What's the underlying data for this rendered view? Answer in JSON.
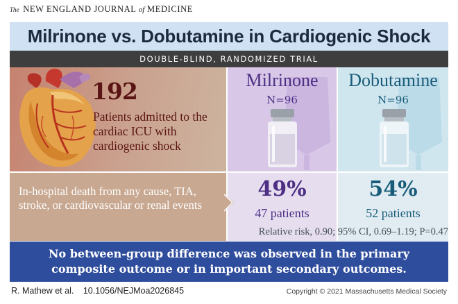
{
  "journal": {
    "the": "The",
    "name_part1": "NEW ENGLAND JOURNAL",
    "of": "of",
    "name_part2": "MEDICINE"
  },
  "title": "Milrinone vs. Dobutamine in Cardiogenic Shock",
  "design": "DOUBLE-BLIND, RANDOMIZED TRIAL",
  "patients": {
    "count": "192",
    "description": "Patients admitted to the cardiac ICU with cardiogenic shock"
  },
  "arms": [
    {
      "name": "Milrinone",
      "n": "N=96",
      "percent": "49%",
      "patients": "47 patients"
    },
    {
      "name": "Dobutamine",
      "n": "N=96",
      "percent": "54%",
      "patients": "52 patients"
    }
  ],
  "outcome": "In-hospital death from any cause, TIA, stroke, or cardiovascular or renal events",
  "relative_risk": "Relative risk, 0.90; 95% CI, 0.69–1.19; P=0.47",
  "conclusion": "No between-group difference was observed in the primary composite outcome or in important secondary outcomes.",
  "footer": {
    "author": "R. Mathew et al.",
    "doi": "10.1056/NEJMoa2026845",
    "copyright": "Copyright © 2021 Massachusetts Medical Society"
  },
  "colors": {
    "title_bar": "#cfe1f3",
    "design_bar": "#3e3e3e",
    "milrinone": "#4d2f84",
    "dobutamine": "#195c7a",
    "patients_text": "#5a1414",
    "conclusion_bar": "#2f4d9d"
  }
}
